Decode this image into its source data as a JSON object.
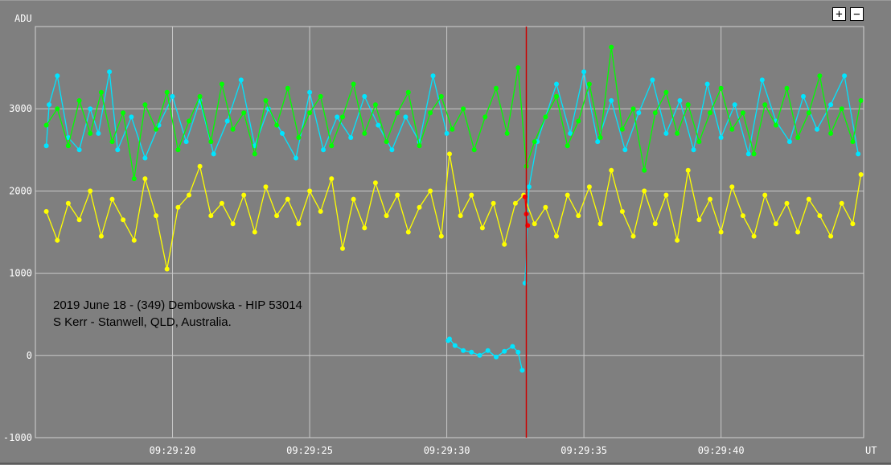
{
  "controls": {
    "zoom_in_label": "+",
    "zoom_out_label": "−"
  },
  "annotation": {
    "line1": "2019 June 18 - (349) Dembowska - HIP 53014",
    "line2": "S Kerr - Stanwell, QLD, Australia."
  },
  "chart_data": {
    "type": "line",
    "ylabel": "ADU",
    "xlabel": "UT",
    "ylim": [
      -1000,
      4000
    ],
    "y_ticks": [
      "3000",
      "2000",
      "1000",
      "0",
      "-1000"
    ],
    "y_tick_values": [
      3000,
      2000,
      1000,
      0,
      -1000
    ],
    "x_ticks": [
      "09:29:20",
      "09:29:25",
      "09:29:30",
      "09:29:35",
      "09:29:40"
    ],
    "x_tick_values": [
      20,
      25,
      30,
      35,
      40
    ],
    "x_range_seconds": [
      15.0,
      45.2
    ],
    "marker_time_seconds": 32.9,
    "grid": true,
    "colors": {
      "background": "#808080",
      "grid": "#c8c8c8",
      "target": "#00e5ff",
      "comp1": "#00ff00",
      "comp2": "#ffff00",
      "marker": "#cc0000",
      "event": "#ff0000"
    },
    "series": [
      {
        "color": "#00e5ff",
        "segments": [
          {
            "x": [
              15.4,
              15.5,
              15.8,
              16.2,
              16.6,
              17.0,
              17.3,
              17.7,
              18.0,
              18.5,
              19.0,
              19.5,
              20.0,
              20.5,
              21.0,
              21.5,
              22.0,
              22.5,
              23.0,
              23.5,
              24.0,
              24.5,
              25.0,
              25.5,
              26.0,
              26.5,
              27.0,
              27.5,
              28.0,
              28.5,
              29.0,
              29.5,
              30.0
            ],
            "y": [
              2550,
              3050,
              3400,
              2650,
              2500,
              3000,
              2700,
              3450,
              2500,
              2900,
              2400,
              2800,
              3150,
              2600,
              3100,
              2450,
              2850,
              3350,
              2550,
              3000,
              2700,
              2400,
              3200,
              2500,
              2900,
              2650,
              3150,
              2800,
              2500,
              2900,
              2600,
              3400,
              2700
            ]
          },
          {
            "x": [
              30.05,
              30.1,
              30.3,
              30.6,
              30.9,
              31.2,
              31.5,
              31.8,
              32.1,
              32.4,
              32.6,
              32.75
            ],
            "y": [
              180,
              200,
              120,
              60,
              40,
              0,
              60,
              -20,
              50,
              110,
              40,
              -180
            ]
          },
          {
            "x": [
              32.85,
              33.0,
              33.3,
              33.6,
              34.0,
              34.5,
              35.0,
              35.5,
              36.0,
              36.5,
              37.0,
              37.5,
              38.0,
              38.5,
              39.0,
              39.5,
              40.0,
              40.5,
              41.0,
              41.5,
              42.0,
              42.5,
              43.0,
              43.5,
              44.0,
              44.5,
              45.0
            ],
            "y": [
              880,
              2050,
              2600,
              2900,
              3300,
              2700,
              3450,
              2600,
              3100,
              2500,
              2950,
              3350,
              2700,
              3100,
              2500,
              3300,
              2650,
              3050,
              2450,
              3350,
              2850,
              2600,
              3150,
              2750,
              3050,
              3400,
              2450
            ]
          }
        ]
      },
      {
        "color": "#00ff00",
        "segments": [
          {
            "x": [
              15.4,
              15.8,
              16.2,
              16.6,
              17.0,
              17.4,
              17.8,
              18.2,
              18.6,
              19.0,
              19.4,
              19.8,
              20.2,
              20.6,
              21.0,
              21.4,
              21.8,
              22.2,
              22.6,
              23.0,
              23.4,
              23.8,
              24.2,
              24.6,
              25.0,
              25.4,
              25.8,
              26.2,
              26.6,
              27.0,
              27.4,
              27.8,
              28.2,
              28.6,
              29.0,
              29.4,
              29.8,
              30.2,
              30.6,
              31.0,
              31.4,
              31.8,
              32.2,
              32.6,
              32.9,
              33.2,
              33.6,
              34.0,
              34.4,
              34.8,
              35.2,
              35.6,
              36.0,
              36.4,
              36.8,
              37.2,
              37.6,
              38.0,
              38.4,
              38.8,
              39.2,
              39.6,
              40.0,
              40.4,
              40.8,
              41.2,
              41.6,
              42.0,
              42.4,
              42.8,
              43.2,
              43.6,
              44.0,
              44.4,
              44.8,
              45.1
            ],
            "y": [
              2800,
              3000,
              2550,
              3100,
              2700,
              3200,
              2600,
              2950,
              2150,
              3050,
              2750,
              3200,
              2500,
              2850,
              3150,
              2600,
              3300,
              2750,
              2950,
              2450,
              3100,
              2800,
              3250,
              2650,
              2950,
              3150,
              2550,
              2900,
              3300,
              2700,
              3050,
              2600,
              2950,
              3200,
              2550,
              2950,
              3150,
              2750,
              3000,
              2500,
              2900,
              3250,
              2700,
              3500,
              2300,
              2600,
              2900,
              3150,
              2550,
              2850,
              3300,
              2650,
              3750,
              2750,
              3000,
              2250,
              2950,
              3200,
              2700,
              3050,
              2600,
              2950,
              3250,
              2750,
              2950,
              2450,
              3050,
              2800,
              3250,
              2650,
              2950,
              3400,
              2700,
              3000,
              2600,
              3100
            ]
          }
        ]
      },
      {
        "color": "#ffff00",
        "segments": [
          {
            "x": [
              15.4,
              15.8,
              16.2,
              16.6,
              17.0,
              17.4,
              17.8,
              18.2,
              18.6,
              19.0,
              19.4,
              19.8,
              20.2,
              20.6,
              21.0,
              21.4,
              21.8,
              22.2,
              22.6,
              23.0,
              23.4,
              23.8,
              24.2,
              24.6,
              25.0,
              25.4,
              25.8,
              26.2,
              26.6,
              27.0,
              27.4,
              27.8,
              28.2,
              28.6,
              29.0,
              29.4,
              29.8,
              30.1,
              30.5,
              30.9,
              31.3,
              31.7,
              32.1,
              32.5,
              32.8,
              33.2,
              33.6,
              34.0,
              34.4,
              34.8,
              35.2,
              35.6,
              36.0,
              36.4,
              36.8,
              37.2,
              37.6,
              38.0,
              38.4,
              38.8,
              39.2,
              39.6,
              40.0,
              40.4,
              40.8,
              41.2,
              41.6,
              42.0,
              42.4,
              42.8,
              43.2,
              43.6,
              44.0,
              44.4,
              44.8,
              45.1
            ],
            "y": [
              1750,
              1400,
              1850,
              1650,
              2000,
              1450,
              1900,
              1650,
              1400,
              2150,
              1700,
              1050,
              1800,
              1950,
              2300,
              1700,
              1850,
              1600,
              1950,
              1500,
              2050,
              1700,
              1900,
              1600,
              2000,
              1750,
              2150,
              1300,
              1900,
              1550,
              2100,
              1700,
              1950,
              1500,
              1800,
              2000,
              1450,
              2450,
              1700,
              1950,
              1550,
              1850,
              1350,
              1850,
              1950,
              1600,
              1800,
              1450,
              1950,
              1700,
              2050,
              1600,
              2250,
              1750,
              1450,
              2000,
              1600,
              1950,
              1400,
              2250,
              1650,
              1900,
              1500,
              2050,
              1700,
              1450,
              1950,
              1600,
              1850,
              1500,
              1900,
              1700,
              1450,
              1850,
              1600,
              2200
            ]
          }
        ]
      },
      {
        "color": "#ff0000",
        "segments": [
          {
            "x": [
              32.85,
              32.9,
              32.95
            ],
            "y": [
              1930,
              1720,
              1580
            ]
          }
        ]
      }
    ]
  }
}
